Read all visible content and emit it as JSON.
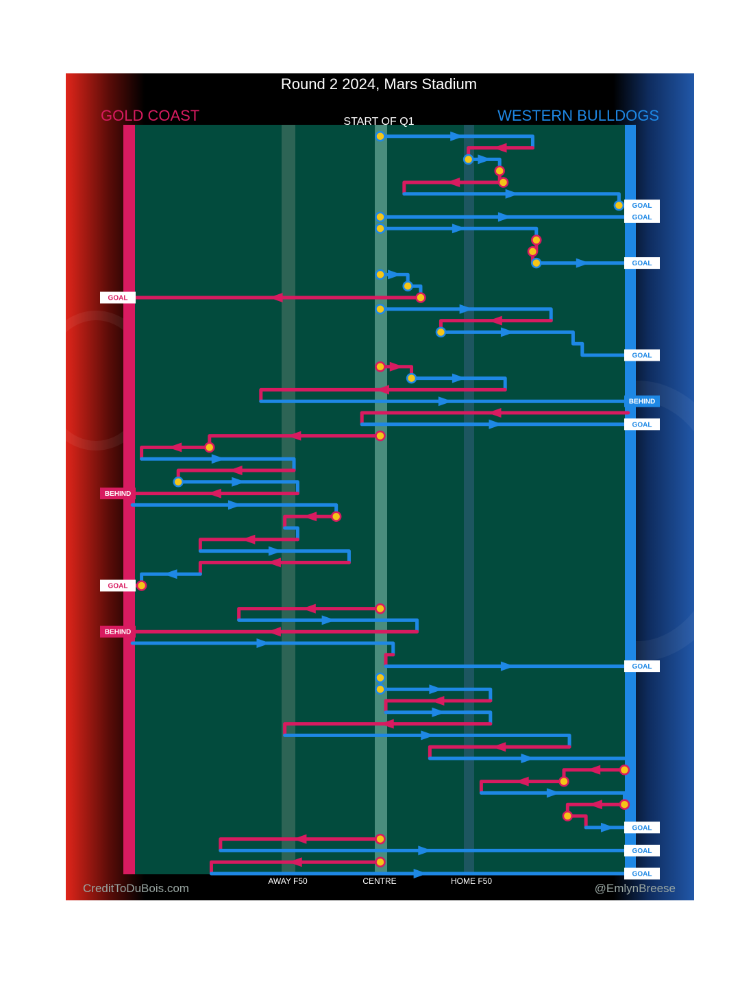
{
  "chart_data": {
    "type": "line",
    "title": "Round 2 2024, Mars Stadium",
    "subtitle": "START OF Q1",
    "teams": {
      "away": {
        "name": "GOLD COAST",
        "color": "#d81b60"
      },
      "home": {
        "name": "WESTERN BULLDOGS",
        "color": "#1e88e5"
      }
    },
    "x_axis": {
      "labels": [
        {
          "text": "AWAY F50",
          "value": -0.5
        },
        {
          "text": "CENTRE",
          "value": 0
        },
        {
          "text": "HOME F50",
          "value": 0.5
        }
      ],
      "range": [
        -1.4,
        1.4
      ]
    },
    "credits": {
      "left": "CreditToDuBois.com",
      "right": "@EmlynBreese"
    },
    "colors": {
      "ground": "#024b3d",
      "away_line": "#d81b60",
      "home_line": "#1e88e5",
      "marker": "#f5c518",
      "panel_bg": "#000000"
    },
    "chains": [
      {
        "team": "home",
        "pts": [
          [
            0,
            1
          ],
          [
            0.83,
            1
          ],
          [
            0.83,
            2
          ]
        ],
        "start": true
      },
      {
        "team": "away",
        "pts": [
          [
            0.83,
            2
          ],
          [
            0.48,
            2
          ],
          [
            0.48,
            3
          ]
        ]
      },
      {
        "team": "home",
        "pts": [
          [
            0.48,
            3
          ],
          [
            0.65,
            3
          ],
          [
            0.65,
            4
          ]
        ],
        "start": true
      },
      {
        "team": "away",
        "pts": [
          [
            0.65,
            4
          ],
          [
            0.65,
            5
          ],
          [
            0.67,
            5
          ]
        ],
        "start": true
      },
      {
        "team": "away",
        "pts": [
          [
            0.67,
            5
          ],
          [
            0.13,
            5
          ],
          [
            0.13,
            6
          ]
        ],
        "start": true
      },
      {
        "team": "home",
        "pts": [
          [
            0.13,
            6
          ],
          [
            1.3,
            6
          ],
          [
            1.3,
            7
          ]
        ]
      },
      {
        "team": "home",
        "pts": [
          [
            1.3,
            7
          ],
          [
            1.35,
            7
          ]
        ],
        "start": true
      },
      {
        "team": "home",
        "pts": [
          [
            0,
            8
          ],
          [
            1.35,
            8
          ]
        ],
        "start": true
      },
      {
        "team": "home",
        "pts": [
          [
            0,
            9
          ],
          [
            0.85,
            9
          ],
          [
            0.85,
            10
          ]
        ],
        "start": true
      },
      {
        "team": "away",
        "pts": [
          [
            0.85,
            10
          ],
          [
            0.85,
            11
          ]
        ],
        "start": true
      },
      {
        "team": "away",
        "pts": [
          [
            0.83,
            11
          ],
          [
            0.83,
            12
          ]
        ],
        "start": true
      },
      {
        "team": "home",
        "pts": [
          [
            0.85,
            12
          ],
          [
            1.35,
            12
          ]
        ],
        "start": true
      },
      {
        "team": "home",
        "pts": [
          [
            0,
            13
          ],
          [
            0.15,
            13
          ],
          [
            0.15,
            14
          ]
        ],
        "start": true
      },
      {
        "team": "home",
        "pts": [
          [
            0.15,
            14
          ],
          [
            0.22,
            14
          ],
          [
            0.22,
            15
          ]
        ],
        "start": true
      },
      {
        "team": "away",
        "pts": [
          [
            0.22,
            15
          ],
          [
            -1.35,
            15
          ]
        ],
        "start": true
      },
      {
        "team": "home",
        "pts": [
          [
            0,
            16
          ],
          [
            0.93,
            16
          ],
          [
            0.93,
            17
          ]
        ],
        "start": true
      },
      {
        "team": "away",
        "pts": [
          [
            0.93,
            17
          ],
          [
            0.33,
            17
          ],
          [
            0.33,
            18
          ]
        ]
      },
      {
        "team": "home",
        "pts": [
          [
            0.33,
            18
          ],
          [
            1.05,
            18
          ],
          [
            1.05,
            19
          ],
          [
            1.1,
            19
          ],
          [
            1.1,
            20
          ],
          [
            1.35,
            20
          ]
        ],
        "start": true
      },
      {
        "team": "away",
        "pts": [
          [
            0,
            21
          ],
          [
            0.17,
            21
          ],
          [
            0.17,
            22
          ]
        ],
        "start": true
      },
      {
        "team": "home",
        "pts": [
          [
            0.17,
            22
          ],
          [
            0.68,
            22
          ],
          [
            0.68,
            23
          ]
        ],
        "start": true
      },
      {
        "team": "away",
        "pts": [
          [
            0.68,
            23
          ],
          [
            -0.65,
            23
          ],
          [
            -0.65,
            24
          ]
        ]
      },
      {
        "team": "home",
        "pts": [
          [
            -0.65,
            24
          ],
          [
            1.35,
            24
          ]
        ]
      },
      {
        "team": "away",
        "pts": [
          [
            1.35,
            25
          ],
          [
            -0.1,
            25
          ],
          [
            -0.1,
            26
          ]
        ]
      },
      {
        "team": "home",
        "pts": [
          [
            -0.1,
            26
          ],
          [
            1.35,
            26
          ]
        ]
      },
      {
        "team": "away",
        "pts": [
          [
            0,
            27
          ],
          [
            -0.93,
            27
          ],
          [
            -0.93,
            28
          ]
        ],
        "start": true
      },
      {
        "team": "away",
        "pts": [
          [
            -0.93,
            28
          ],
          [
            -1.3,
            28
          ],
          [
            -1.3,
            29
          ]
        ],
        "start": true
      },
      {
        "team": "home",
        "pts": [
          [
            -1.3,
            29
          ],
          [
            -0.47,
            29
          ],
          [
            -0.47,
            30
          ]
        ]
      },
      {
        "team": "away",
        "pts": [
          [
            -0.47,
            30
          ],
          [
            -1.1,
            30
          ],
          [
            -1.1,
            31
          ]
        ]
      },
      {
        "team": "home",
        "pts": [
          [
            -1.1,
            31
          ],
          [
            -0.45,
            31
          ],
          [
            -0.45,
            32
          ]
        ],
        "start": true
      },
      {
        "team": "away",
        "pts": [
          [
            -0.45,
            32
          ],
          [
            -1.35,
            32
          ]
        ]
      },
      {
        "team": "home",
        "pts": [
          [
            -1.35,
            33
          ],
          [
            -0.24,
            33
          ],
          [
            -0.24,
            34
          ]
        ]
      },
      {
        "team": "away",
        "pts": [
          [
            -0.24,
            34
          ],
          [
            -0.52,
            34
          ],
          [
            -0.52,
            35
          ]
        ],
        "start": true
      },
      {
        "team": "home",
        "pts": [
          [
            -0.52,
            35
          ],
          [
            -0.45,
            35
          ],
          [
            -0.45,
            36
          ]
        ]
      },
      {
        "team": "away",
        "pts": [
          [
            -0.45,
            36
          ],
          [
            -0.98,
            36
          ],
          [
            -0.98,
            37
          ]
        ]
      },
      {
        "team": "home",
        "pts": [
          [
            -0.98,
            37
          ],
          [
            -0.17,
            37
          ],
          [
            -0.17,
            38
          ]
        ]
      },
      {
        "team": "away",
        "pts": [
          [
            -0.17,
            38
          ],
          [
            -0.98,
            38
          ],
          [
            -0.98,
            39
          ]
        ]
      },
      {
        "team": "home",
        "pts": [
          [
            -0.98,
            39
          ],
          [
            -1.3,
            39
          ],
          [
            -1.3,
            40
          ]
        ]
      },
      {
        "team": "away",
        "pts": [
          [
            -1.3,
            40
          ],
          [
            -1.35,
            40
          ]
        ],
        "start": true
      },
      {
        "team": "away",
        "pts": [
          [
            0,
            42
          ],
          [
            -0.77,
            42
          ],
          [
            -0.77,
            43
          ]
        ],
        "start": true
      },
      {
        "team": "home",
        "pts": [
          [
            -0.77,
            43
          ],
          [
            0.2,
            43
          ],
          [
            0.2,
            44
          ]
        ]
      },
      {
        "team": "away",
        "pts": [
          [
            0.2,
            44
          ],
          [
            -1.35,
            44
          ]
        ]
      },
      {
        "team": "home",
        "pts": [
          [
            -1.35,
            45
          ],
          [
            0.07,
            45
          ],
          [
            0.07,
            46
          ]
        ]
      },
      {
        "team": "away",
        "pts": [
          [
            0.07,
            46
          ],
          [
            0.03,
            46
          ],
          [
            0.03,
            47
          ]
        ]
      },
      {
        "team": "home",
        "pts": [
          [
            0.03,
            47
          ],
          [
            1.35,
            47
          ]
        ]
      },
      {
        "team": "home",
        "pts": [
          [
            0,
            48
          ],
          [
            0,
            49
          ]
        ],
        "start": true
      },
      {
        "team": "home",
        "pts": [
          [
            0,
            49
          ],
          [
            0.6,
            49
          ],
          [
            0.6,
            50
          ]
        ],
        "start": true
      },
      {
        "team": "away",
        "pts": [
          [
            0.6,
            50
          ],
          [
            0.03,
            50
          ],
          [
            0.03,
            51
          ]
        ]
      },
      {
        "team": "home",
        "pts": [
          [
            0.03,
            51
          ],
          [
            0.6,
            51
          ],
          [
            0.6,
            52
          ]
        ]
      },
      {
        "team": "away",
        "pts": [
          [
            0.6,
            52
          ],
          [
            -0.52,
            52
          ],
          [
            -0.52,
            53
          ]
        ]
      },
      {
        "team": "home",
        "pts": [
          [
            -0.52,
            53
          ],
          [
            1.03,
            53
          ],
          [
            1.03,
            54
          ]
        ]
      },
      {
        "team": "away",
        "pts": [
          [
            1.03,
            54
          ],
          [
            0.27,
            54
          ],
          [
            0.27,
            55
          ]
        ]
      },
      {
        "team": "home",
        "pts": [
          [
            0.27,
            55
          ],
          [
            1.33,
            55
          ]
        ]
      },
      {
        "team": "away",
        "pts": [
          [
            1.33,
            56
          ],
          [
            1.0,
            56
          ],
          [
            1.0,
            57
          ]
        ],
        "start": true
      },
      {
        "team": "away",
        "pts": [
          [
            1.0,
            57
          ],
          [
            0.55,
            57
          ],
          [
            0.55,
            58
          ]
        ],
        "start": true
      },
      {
        "team": "home",
        "pts": [
          [
            0.55,
            58
          ],
          [
            1.33,
            58
          ],
          [
            1.33,
            59
          ]
        ]
      },
      {
        "team": "away",
        "pts": [
          [
            1.33,
            59
          ],
          [
            1.02,
            59
          ],
          [
            1.02,
            60
          ]
        ],
        "start": true
      },
      {
        "team": "away",
        "pts": [
          [
            1.02,
            60
          ],
          [
            1.12,
            60
          ],
          [
            1.12,
            61
          ]
        ],
        "start": true
      },
      {
        "team": "home",
        "pts": [
          [
            1.12,
            61
          ],
          [
            1.35,
            61
          ]
        ]
      },
      {
        "team": "away",
        "pts": [
          [
            0,
            62
          ],
          [
            -0.87,
            62
          ],
          [
            -0.87,
            63
          ]
        ],
        "start": true
      },
      {
        "team": "home",
        "pts": [
          [
            -0.87,
            63
          ],
          [
            1.35,
            63
          ]
        ]
      },
      {
        "team": "away",
        "pts": [
          [
            0,
            64
          ],
          [
            -0.92,
            64
          ],
          [
            -0.92,
            65
          ]
        ],
        "start": true
      },
      {
        "team": "home",
        "pts": [
          [
            -0.92,
            65
          ],
          [
            1.35,
            65
          ]
        ]
      }
    ],
    "results": [
      {
        "team": "home",
        "label": "GOAL",
        "row": 7
      },
      {
        "team": "home",
        "label": "GOAL",
        "row": 8
      },
      {
        "team": "home",
        "label": "GOAL",
        "row": 12
      },
      {
        "team": "away",
        "label": "GOAL",
        "row": 15
      },
      {
        "team": "home",
        "label": "GOAL",
        "row": 20
      },
      {
        "team": "home",
        "label": "BEHIND",
        "row": 24
      },
      {
        "team": "home",
        "label": "GOAL",
        "row": 26
      },
      {
        "team": "away",
        "label": "BEHIND",
        "row": 32
      },
      {
        "team": "away",
        "label": "GOAL",
        "row": 40
      },
      {
        "team": "away",
        "label": "BEHIND",
        "row": 44
      },
      {
        "team": "home",
        "label": "GOAL",
        "row": 47
      },
      {
        "team": "home",
        "label": "GOAL",
        "row": 61
      },
      {
        "team": "home",
        "label": "GOAL",
        "row": 63
      },
      {
        "team": "home",
        "label": "GOAL",
        "row": 65
      }
    ]
  }
}
